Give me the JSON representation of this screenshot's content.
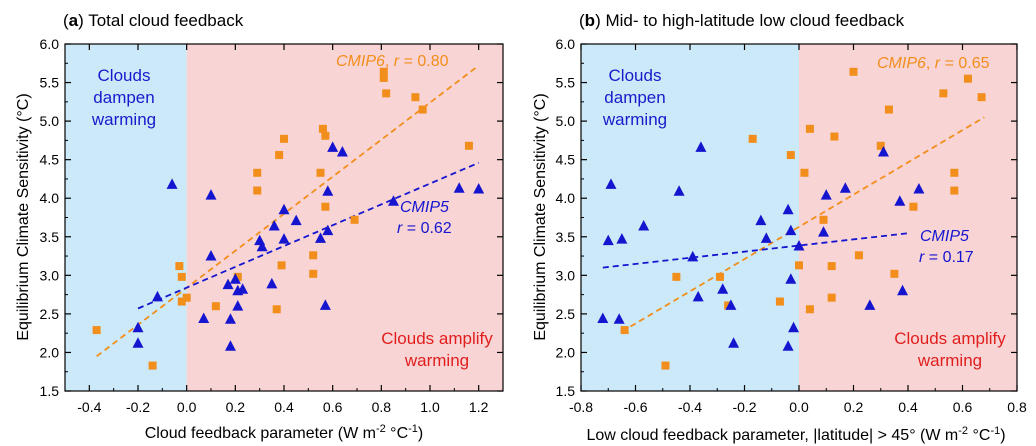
{
  "colors": {
    "cmip6": "#f28e1c",
    "cmip5": "#1515d0",
    "dampen_bg": "#cbe9f8",
    "amplify_bg": "#f9d4d4",
    "dampen_text": "#1a1acc",
    "amplify_text": "#e01e1e"
  },
  "chart_data": [
    {
      "type": "scatter",
      "panel_letter": "a",
      "title": " Total cloud feedback",
      "xlabel": "Cloud feedback parameter (W m",
      "xlabel_exp1": "-2",
      "xlabel_mid": " °C",
      "xlabel_exp2": "-1",
      "xlabel_end": ")",
      "ylabel": "Equilibrium Climate Sensitivity (°C)",
      "xlim": [
        -0.5,
        1.3
      ],
      "ylim": [
        1.5,
        6.0
      ],
      "xticks": [
        -0.4,
        -0.2,
        0.0,
        0.2,
        0.4,
        0.6,
        0.8,
        1.0,
        1.2
      ],
      "xtick_labels": [
        "-0.4",
        "-0.2",
        "0.0",
        "0.2",
        "0.4",
        "0.6",
        "0.8",
        "1.0",
        "1.2"
      ],
      "yticks": [
        1.5,
        2.0,
        2.5,
        3.0,
        3.5,
        4.0,
        4.5,
        5.0,
        5.5,
        6.0
      ],
      "ytick_labels": [
        "1.5",
        "2.0",
        "2.5",
        "3.0",
        "3.5",
        "4.0",
        "4.5",
        "5.0",
        "5.5",
        "6.0"
      ],
      "region_split_x": 0.0,
      "dampen_label": [
        "Clouds",
        "dampen",
        "warming"
      ],
      "amplify_label": [
        "Clouds amplify",
        "warming"
      ],
      "series": [
        {
          "name": "CMIP6",
          "marker": "square",
          "r_label": "r",
          "r_value": " = 0.80",
          "trend": [
            [
              -0.37,
              1.95
            ],
            [
              1.2,
              5.72
            ]
          ],
          "points": [
            [
              -0.37,
              2.29
            ],
            [
              -0.14,
              1.83
            ],
            [
              -0.03,
              3.12
            ],
            [
              -0.02,
              2.98
            ],
            [
              -0.02,
              2.66
            ],
            [
              0.0,
              2.71
            ],
            [
              0.12,
              2.6
            ],
            [
              0.21,
              2.98
            ],
            [
              0.29,
              4.33
            ],
            [
              0.29,
              4.1
            ],
            [
              0.37,
              2.56
            ],
            [
              0.38,
              4.56
            ],
            [
              0.4,
              4.77
            ],
            [
              0.39,
              3.13
            ],
            [
              0.52,
              3.02
            ],
            [
              0.52,
              3.26
            ],
            [
              0.55,
              4.33
            ],
            [
              0.56,
              4.9
            ],
            [
              0.57,
              4.81
            ],
            [
              0.57,
              3.89
            ],
            [
              0.69,
              3.72
            ],
            [
              0.81,
              5.56
            ],
            [
              0.81,
              5.64
            ],
            [
              0.82,
              5.36
            ],
            [
              0.94,
              5.31
            ],
            [
              0.97,
              5.15
            ],
            [
              1.16,
              4.68
            ]
          ]
        },
        {
          "name": "CMIP5",
          "marker": "triangle",
          "r_label": "r",
          "r_value": " = 0.62",
          "trend": [
            [
              -0.2,
              2.57
            ],
            [
              1.2,
              4.46
            ]
          ],
          "points": [
            [
              -0.2,
              2.32
            ],
            [
              -0.2,
              2.12
            ],
            [
              -0.12,
              2.72
            ],
            [
              -0.06,
              4.18
            ],
            [
              0.07,
              2.44
            ],
            [
              0.1,
              4.04
            ],
            [
              0.1,
              3.25
            ],
            [
              0.17,
              2.88
            ],
            [
              0.18,
              2.43
            ],
            [
              0.18,
              2.08
            ],
            [
              0.2,
              2.95
            ],
            [
              0.21,
              2.6
            ],
            [
              0.23,
              2.82
            ],
            [
              0.21,
              2.8
            ],
            [
              0.3,
              3.45
            ],
            [
              0.31,
              3.37
            ],
            [
              0.35,
              2.89
            ],
            [
              0.36,
              3.64
            ],
            [
              0.4,
              3.85
            ],
            [
              0.4,
              3.47
            ],
            [
              0.45,
              3.71
            ],
            [
              0.55,
              3.48
            ],
            [
              0.58,
              3.58
            ],
            [
              0.58,
              4.09
            ],
            [
              0.6,
              4.66
            ],
            [
              0.57,
              2.61
            ],
            [
              0.64,
              4.6
            ],
            [
              0.85,
              3.96
            ],
            [
              1.12,
              4.13
            ],
            [
              1.2,
              4.12
            ]
          ]
        }
      ]
    },
    {
      "type": "scatter",
      "panel_letter": "b",
      "title": " Mid- to high-latitude low cloud feedback",
      "xlabel": "Low cloud feedback parameter, |latitude| > 45° (W m",
      "xlabel_exp1": "-2",
      "xlabel_mid": " °C",
      "xlabel_exp2": "-1",
      "xlabel_end": ")",
      "ylabel": "Equilibrium Climate Sensitivity (°C)",
      "xlim": [
        -0.8,
        0.8
      ],
      "ylim": [
        1.5,
        6.0
      ],
      "xticks": [
        -0.8,
        -0.6,
        -0.4,
        -0.2,
        0.0,
        0.2,
        0.4,
        0.6,
        0.8
      ],
      "xtick_labels": [
        "-0.8",
        "-0.6",
        "-0.4",
        "-0.2",
        "0.0",
        "0.2",
        "0.4",
        "0.6",
        "0.8"
      ],
      "yticks": [
        1.5,
        2.0,
        2.5,
        3.0,
        3.5,
        4.0,
        4.5,
        5.0,
        5.5,
        6.0
      ],
      "ytick_labels": [
        "1.5",
        "2.0",
        "2.5",
        "3.0",
        "3.5",
        "4.0",
        "4.5",
        "5.0",
        "5.5",
        "6.0"
      ],
      "region_split_x": 0.0,
      "dampen_label": [
        "Clouds",
        "dampen",
        "warming"
      ],
      "amplify_label": [
        "Clouds amplify",
        "warming"
      ],
      "series": [
        {
          "name": "CMIP6",
          "marker": "square",
          "r_label": "r",
          "r_value": " = 0.65",
          "trend": [
            [
              -0.65,
              2.27
            ],
            [
              0.68,
              5.05
            ]
          ],
          "points": [
            [
              -0.49,
              1.83
            ],
            [
              -0.45,
              2.98
            ],
            [
              -0.64,
              2.29
            ],
            [
              -0.29,
              2.98
            ],
            [
              -0.26,
              2.61
            ],
            [
              -0.17,
              4.77
            ],
            [
              -0.07,
              2.66
            ],
            [
              -0.03,
              4.56
            ],
            [
              0.0,
              3.13
            ],
            [
              0.02,
              4.33
            ],
            [
              0.04,
              4.9
            ],
            [
              0.04,
              2.56
            ],
            [
              0.09,
              3.72
            ],
            [
              0.12,
              2.71
            ],
            [
              0.12,
              3.12
            ],
            [
              0.13,
              4.8
            ],
            [
              0.2,
              5.64
            ],
            [
              0.22,
              3.26
            ],
            [
              0.3,
              4.68
            ],
            [
              0.33,
              5.15
            ],
            [
              0.35,
              3.02
            ],
            [
              0.42,
              3.89
            ],
            [
              0.53,
              5.36
            ],
            [
              0.57,
              4.1
            ],
            [
              0.57,
              4.33
            ],
            [
              0.62,
              5.55
            ],
            [
              0.67,
              5.31
            ]
          ]
        },
        {
          "name": "CMIP5",
          "marker": "triangle",
          "r_label": "r",
          "r_value": " = 0.17",
          "trend": [
            [
              -0.72,
              3.1
            ],
            [
              0.41,
              3.55
            ]
          ],
          "points": [
            [
              -0.72,
              2.44
            ],
            [
              -0.7,
              3.45
            ],
            [
              -0.69,
              4.18
            ],
            [
              -0.66,
              2.43
            ],
            [
              -0.65,
              3.47
            ],
            [
              -0.57,
              3.64
            ],
            [
              -0.44,
              4.09
            ],
            [
              -0.39,
              3.24
            ],
            [
              -0.37,
              2.72
            ],
            [
              -0.36,
              4.66
            ],
            [
              -0.28,
              2.82
            ],
            [
              -0.25,
              2.61
            ],
            [
              -0.24,
              2.12
            ],
            [
              -0.14,
              3.71
            ],
            [
              -0.12,
              3.48
            ],
            [
              -0.04,
              3.85
            ],
            [
              -0.04,
              2.08
            ],
            [
              -0.03,
              3.58
            ],
            [
              -0.03,
              2.95
            ],
            [
              -0.02,
              2.32
            ],
            [
              0.0,
              3.38
            ],
            [
              0.09,
              3.56
            ],
            [
              0.1,
              4.04
            ],
            [
              0.17,
              4.13
            ],
            [
              0.26,
              2.61
            ],
            [
              0.31,
              4.6
            ],
            [
              0.37,
              3.96
            ],
            [
              0.38,
              2.8
            ],
            [
              0.44,
              4.12
            ]
          ]
        }
      ]
    }
  ]
}
